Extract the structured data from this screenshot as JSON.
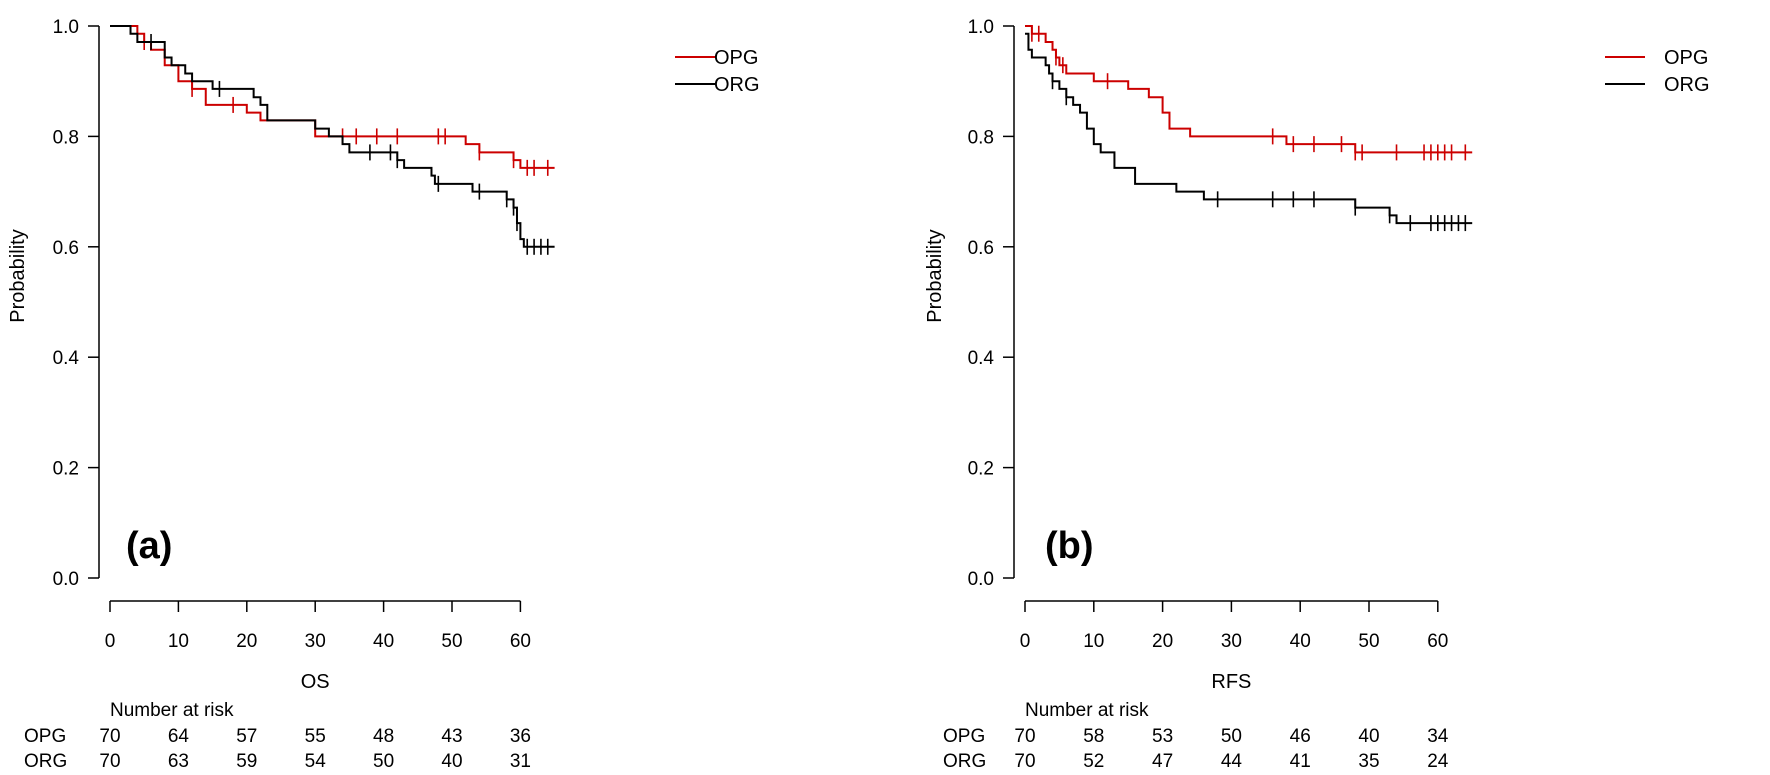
{
  "colors": {
    "OPG": "#cc0000",
    "ORG": "#000000"
  },
  "chart_data": [
    {
      "type": "line",
      "subtype": "kaplan-meier",
      "panel_label": "(a)",
      "xlabel": "OS",
      "ylabel": "Probability",
      "xlim": [
        0,
        65
      ],
      "ylim": [
        0,
        1
      ],
      "xticks": [
        "0",
        "10",
        "20",
        "30",
        "40",
        "50",
        "60"
      ],
      "yticks": [
        "0.0",
        "0.2",
        "0.4",
        "0.6",
        "0.8",
        "1.0"
      ],
      "legend_position": "top-right",
      "series": [
        {
          "name": "OPG",
          "color": "#cc0000",
          "steps": [
            [
              0,
              1.0
            ],
            [
              4,
              0.986
            ],
            [
              5,
              0.971
            ],
            [
              6,
              0.957
            ],
            [
              8,
              0.929
            ],
            [
              10,
              0.9
            ],
            [
              12,
              0.886
            ],
            [
              14,
              0.857
            ],
            [
              20,
              0.843
            ],
            [
              22,
              0.829
            ],
            [
              30,
              0.8
            ],
            [
              52,
              0.786
            ],
            [
              54,
              0.771
            ],
            [
              59,
              0.757
            ],
            [
              60,
              0.743
            ],
            [
              65,
              0.743
            ]
          ],
          "censor": [
            [
              5,
              0.971
            ],
            [
              12,
              0.886
            ],
            [
              18,
              0.857
            ],
            [
              34,
              0.8
            ],
            [
              36,
              0.8
            ],
            [
              39,
              0.8
            ],
            [
              42,
              0.8
            ],
            [
              48,
              0.8
            ],
            [
              49,
              0.8
            ],
            [
              54,
              0.771
            ],
            [
              59,
              0.757
            ],
            [
              61,
              0.743
            ],
            [
              62,
              0.743
            ],
            [
              64,
              0.743
            ]
          ]
        },
        {
          "name": "ORG",
          "color": "#000000",
          "steps": [
            [
              0,
              1.0
            ],
            [
              3,
              0.986
            ],
            [
              4,
              0.971
            ],
            [
              8,
              0.943
            ],
            [
              9,
              0.929
            ],
            [
              11,
              0.914
            ],
            [
              12,
              0.9
            ],
            [
              15,
              0.886
            ],
            [
              21,
              0.871
            ],
            [
              22,
              0.857
            ],
            [
              23,
              0.829
            ],
            [
              30,
              0.814
            ],
            [
              32,
              0.8
            ],
            [
              34,
              0.786
            ],
            [
              35,
              0.771
            ],
            [
              42,
              0.757
            ],
            [
              43,
              0.743
            ],
            [
              47,
              0.729
            ],
            [
              47.5,
              0.714
            ],
            [
              53,
              0.7
            ],
            [
              58,
              0.686
            ],
            [
              59,
              0.671
            ],
            [
              59.5,
              0.643
            ],
            [
              60,
              0.614
            ],
            [
              60.5,
              0.6
            ],
            [
              65,
              0.6
            ]
          ],
          "censor": [
            [
              6,
              0.971
            ],
            [
              16,
              0.886
            ],
            [
              38,
              0.771
            ],
            [
              41,
              0.771
            ],
            [
              42,
              0.757
            ],
            [
              48,
              0.714
            ],
            [
              54,
              0.7
            ],
            [
              58,
              0.686
            ],
            [
              59,
              0.671
            ],
            [
              59.5,
              0.643
            ],
            [
              61,
              0.6
            ],
            [
              62,
              0.6
            ],
            [
              63,
              0.6
            ],
            [
              64,
              0.6
            ]
          ]
        }
      ],
      "risk_table": {
        "title": "Number at risk",
        "times": [
          "0",
          "10",
          "20",
          "30",
          "40",
          "50",
          "60"
        ],
        "rows": [
          {
            "label": "OPG",
            "values": [
              "70",
              "64",
              "57",
              "55",
              "48",
              "43",
              "36"
            ]
          },
          {
            "label": "ORG",
            "values": [
              "70",
              "63",
              "59",
              "54",
              "50",
              "40",
              "31"
            ]
          }
        ]
      }
    },
    {
      "type": "line",
      "subtype": "kaplan-meier",
      "panel_label": "(b)",
      "xlabel": "RFS",
      "ylabel": "Probability",
      "xlim": [
        0,
        65
      ],
      "ylim": [
        0,
        1
      ],
      "xticks": [
        "0",
        "10",
        "20",
        "30",
        "40",
        "50",
        "60"
      ],
      "yticks": [
        "0.0",
        "0.2",
        "0.4",
        "0.6",
        "0.8",
        "1.0"
      ],
      "legend_position": "top-right",
      "series": [
        {
          "name": "OPG",
          "color": "#cc0000",
          "steps": [
            [
              0,
              1.0
            ],
            [
              1,
              0.986
            ],
            [
              3,
              0.971
            ],
            [
              4,
              0.957
            ],
            [
              4.5,
              0.943
            ],
            [
              5,
              0.929
            ],
            [
              6,
              0.914
            ],
            [
              10,
              0.9
            ],
            [
              15,
              0.886
            ],
            [
              18,
              0.871
            ],
            [
              20,
              0.843
            ],
            [
              21,
              0.814
            ],
            [
              24,
              0.8
            ],
            [
              38,
              0.786
            ],
            [
              48,
              0.771
            ],
            [
              65,
              0.771
            ]
          ],
          "censor": [
            [
              1,
              0.986
            ],
            [
              2,
              0.986
            ],
            [
              4.5,
              0.943
            ],
            [
              5.5,
              0.929
            ],
            [
              12,
              0.9
            ],
            [
              36,
              0.8
            ],
            [
              39,
              0.786
            ],
            [
              42,
              0.786
            ],
            [
              46,
              0.786
            ],
            [
              48,
              0.771
            ],
            [
              49,
              0.771
            ],
            [
              54,
              0.771
            ],
            [
              58,
              0.771
            ],
            [
              59,
              0.771
            ],
            [
              60,
              0.771
            ],
            [
              61,
              0.771
            ],
            [
              62,
              0.771
            ],
            [
              64,
              0.771
            ]
          ]
        },
        {
          "name": "ORG",
          "color": "#000000",
          "steps": [
            [
              0,
              0.986
            ],
            [
              0.5,
              0.957
            ],
            [
              1,
              0.943
            ],
            [
              3,
              0.929
            ],
            [
              3.5,
              0.914
            ],
            [
              4,
              0.9
            ],
            [
              5,
              0.886
            ],
            [
              6,
              0.871
            ],
            [
              7,
              0.857
            ],
            [
              8,
              0.843
            ],
            [
              9,
              0.814
            ],
            [
              10,
              0.786
            ],
            [
              11,
              0.771
            ],
            [
              13,
              0.743
            ],
            [
              16,
              0.714
            ],
            [
              22,
              0.7
            ],
            [
              26,
              0.686
            ],
            [
              48,
              0.671
            ],
            [
              53,
              0.657
            ],
            [
              54,
              0.643
            ],
            [
              65,
              0.643
            ]
          ],
          "censor": [
            [
              4,
              0.9
            ],
            [
              6,
              0.871
            ],
            [
              28,
              0.686
            ],
            [
              36,
              0.686
            ],
            [
              39,
              0.686
            ],
            [
              42,
              0.686
            ],
            [
              48,
              0.671
            ],
            [
              53,
              0.657
            ],
            [
              56,
              0.643
            ],
            [
              59,
              0.643
            ],
            [
              60,
              0.643
            ],
            [
              61,
              0.643
            ],
            [
              62,
              0.643
            ],
            [
              63,
              0.643
            ],
            [
              64,
              0.643
            ]
          ]
        }
      ],
      "risk_table": {
        "title": "Number at risk",
        "times": [
          "0",
          "10",
          "20",
          "30",
          "40",
          "50",
          "60"
        ],
        "rows": [
          {
            "label": "OPG",
            "values": [
              "70",
              "58",
              "53",
              "50",
              "46",
              "40",
              "34"
            ]
          },
          {
            "label": "ORG",
            "values": [
              "70",
              "52",
              "47",
              "44",
              "41",
              "35",
              "24"
            ]
          }
        ]
      }
    }
  ]
}
